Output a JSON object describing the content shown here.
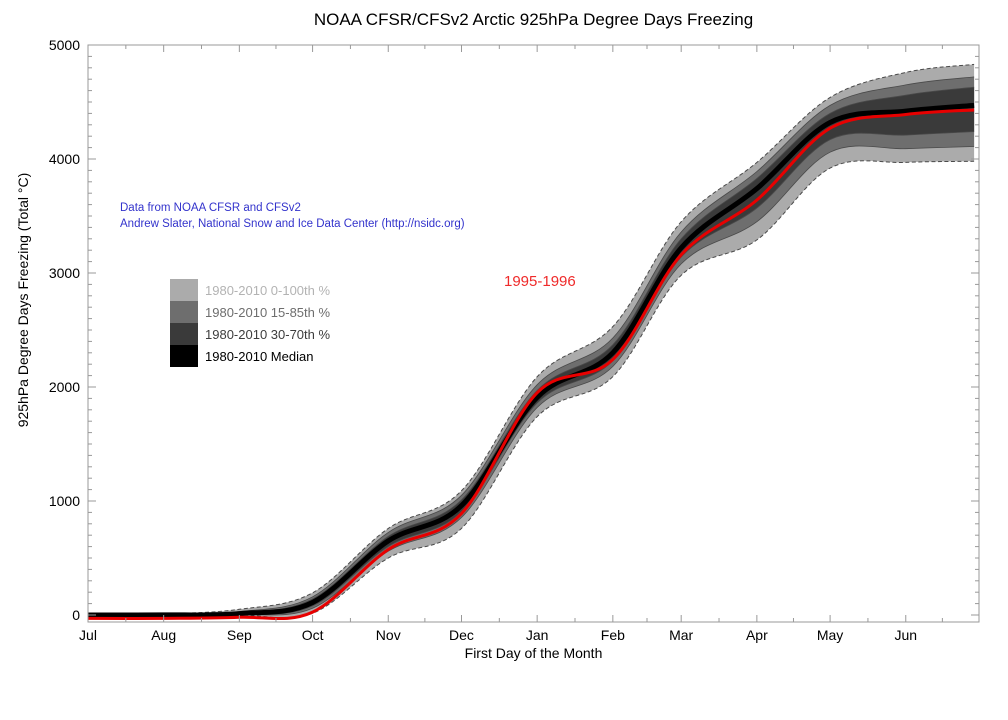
{
  "title": "NOAA CFSR/CFSv2 Arctic 925hPa Degree Days Freezing",
  "annotation": {
    "line1": "Data from NOAA CFSR and CFSv2",
    "line2": "Andrew Slater, National Snow and Ice Data Center (http://nsidc.org)",
    "color": "#3333cc"
  },
  "highlight_label": {
    "text": "1995-1996",
    "color": "#ef2a2a"
  },
  "legend": {
    "items": [
      {
        "label": "1980-2010 0-100th %",
        "swatch_color": "#ababab",
        "text_color": "#b3b3b3"
      },
      {
        "label": "1980-2010 15-85th %",
        "swatch_color": "#6e6e6e",
        "text_color": "#6e6e6e"
      },
      {
        "label": "1980-2010 30-70th %",
        "swatch_color": "#3a3a3a",
        "text_color": "#3d3d3d"
      },
      {
        "label": "1980-2010 Median",
        "swatch_color": "#000000",
        "text_color": "#000000"
      }
    ]
  },
  "chart_data": {
    "type": "area",
    "title": "NOAA CFSR/CFSv2 Arctic 925hPa Degree Days Freezing",
    "xlabel": "First Day of the Month",
    "ylabel": "925hPa Degree Days Freezing (Total °C)",
    "x_tick_labels": [
      "Jul",
      "Aug",
      "Sep",
      "Oct",
      "Nov",
      "Dec",
      "Jan",
      "Feb",
      "Mar",
      "Apr",
      "May",
      "Jun"
    ],
    "x_tick_days": [
      0,
      31,
      62,
      92,
      123,
      153,
      184,
      215,
      243,
      274,
      304,
      335
    ],
    "x_minor_tick_days": [
      15.5,
      46.5,
      77,
      107.5,
      138,
      168.5,
      199.5,
      229,
      258.5,
      289,
      319.5,
      350
    ],
    "x_range_days": 365,
    "y_ticks": [
      0,
      1000,
      2000,
      3000,
      4000,
      5000
    ],
    "y_minor_step": 100,
    "ylim": [
      -60,
      5000
    ],
    "grid": false,
    "legend_position": "upper-left-inside",
    "frame_color": "#999999",
    "edge_line_color": "#4a4a4a",
    "median_color": "#000000",
    "sample_days": [
      0,
      31,
      62,
      92,
      123,
      153,
      184,
      215,
      243,
      274,
      304,
      335,
      363
    ],
    "percentiles": {
      "p0": [
        0,
        0,
        0,
        15,
        500,
        760,
        1740,
        2090,
        2980,
        3290,
        3920,
        3970,
        3980
      ],
      "p15": [
        0,
        0,
        2,
        60,
        560,
        855,
        1820,
        2180,
        3080,
        3450,
        4060,
        4090,
        4110
      ],
      "p30": [
        0,
        0,
        5,
        80,
        600,
        905,
        1860,
        2230,
        3140,
        3570,
        4170,
        4210,
        4240
      ],
      "p50": [
        0,
        1,
        12,
        110,
        650,
        960,
        1910,
        2300,
        3220,
        3740,
        4320,
        4420,
        4470
      ],
      "p70": [
        0,
        3,
        20,
        140,
        690,
        1010,
        1970,
        2370,
        3300,
        3830,
        4400,
        4560,
        4630
      ],
      "p85": [
        0,
        5,
        30,
        160,
        725,
        1050,
        2020,
        2430,
        3360,
        3890,
        4470,
        4650,
        4720
      ],
      "p100": [
        0,
        10,
        50,
        195,
        760,
        1090,
        2090,
        2530,
        3450,
        3970,
        4540,
        4760,
        4830
      ]
    },
    "bands": [
      {
        "label": "1980-2010 0-100th %",
        "lower": "p0",
        "upper": "p100",
        "fill": "#ababab",
        "edge_style": "dashed"
      },
      {
        "label": "1980-2010 15-85th %",
        "lower": "p15",
        "upper": "p85",
        "fill": "#6e6e6e",
        "edge_style": "solid"
      },
      {
        "label": "1980-2010 30-70th %",
        "lower": "p30",
        "upper": "p70",
        "fill": "#3a3a3a",
        "edge_style": "solid"
      }
    ],
    "median": {
      "name": "1980-2010 Median",
      "color": "#000000",
      "values": [
        0,
        1,
        12,
        110,
        650,
        960,
        1910,
        2300,
        3220,
        3740,
        4320,
        4420,
        4470
      ]
    },
    "series": [
      {
        "name": "1995-1996",
        "color": "#e80000",
        "values": [
          -30,
          -30,
          -20,
          25,
          575,
          890,
          1950,
          2240,
          3160,
          3640,
          4270,
          4390,
          4430
        ]
      }
    ]
  }
}
